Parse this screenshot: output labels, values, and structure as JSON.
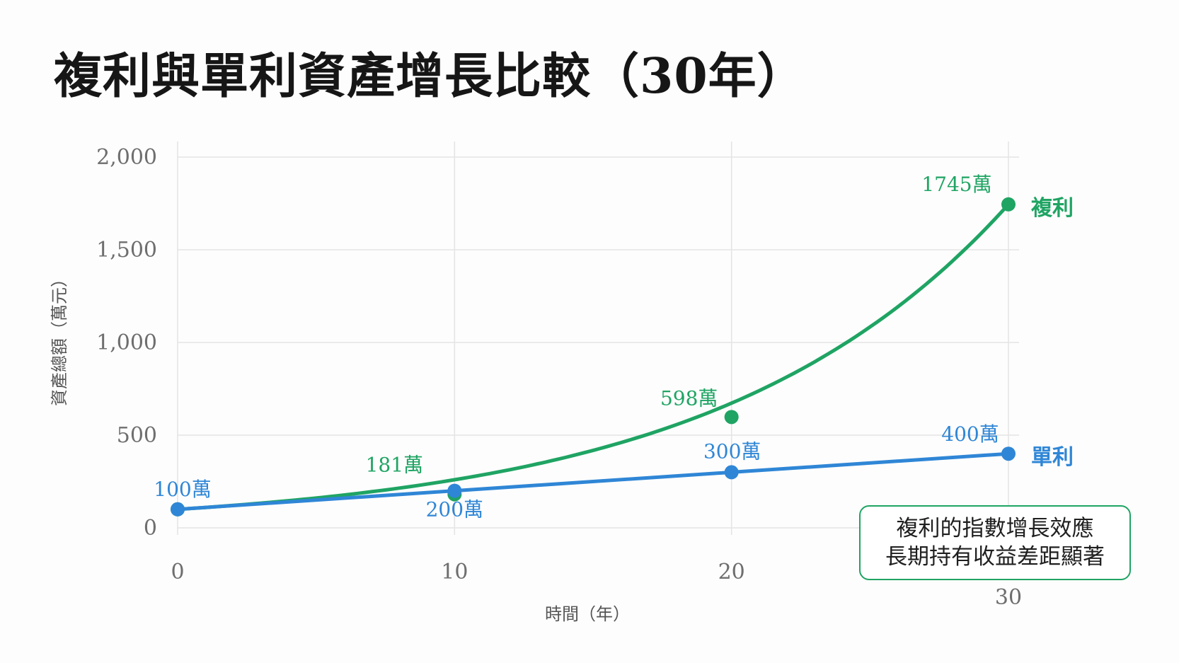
{
  "title": "複利與單利資產增長比較（30年）",
  "annotation": {
    "line1": "複利的指數增長效應",
    "line2": "長期持有收益差距顯著"
  },
  "colors": {
    "compound": "#1fa463",
    "simple": "#2f86d6",
    "grid": "#e4e4e4"
  },
  "chart_data": {
    "type": "line",
    "title": "複利與單利資產增長比較（30年）",
    "xlabel": "時間（年）",
    "ylabel": "資產總額（萬元）",
    "x": [
      0,
      10,
      20,
      30
    ],
    "x_ticks": [
      "0",
      "10",
      "20",
      "30"
    ],
    "y_ticks": [
      "0",
      "500",
      "1,000",
      "1,500",
      "2,000"
    ],
    "ylim": [
      0,
      2000
    ],
    "xlim": [
      0,
      30
    ],
    "grid": true,
    "series": [
      {
        "name": "複利",
        "color": "#1fa463",
        "values": [
          100,
          181,
          598,
          1745
        ],
        "labels": [
          "",
          "181萬",
          "598萬",
          "1745萬"
        ]
      },
      {
        "name": "單利",
        "color": "#2f86d6",
        "values": [
          100,
          200,
          300,
          400
        ],
        "labels": [
          "100萬",
          "200萬",
          "300萬",
          "400萬"
        ]
      }
    ]
  }
}
